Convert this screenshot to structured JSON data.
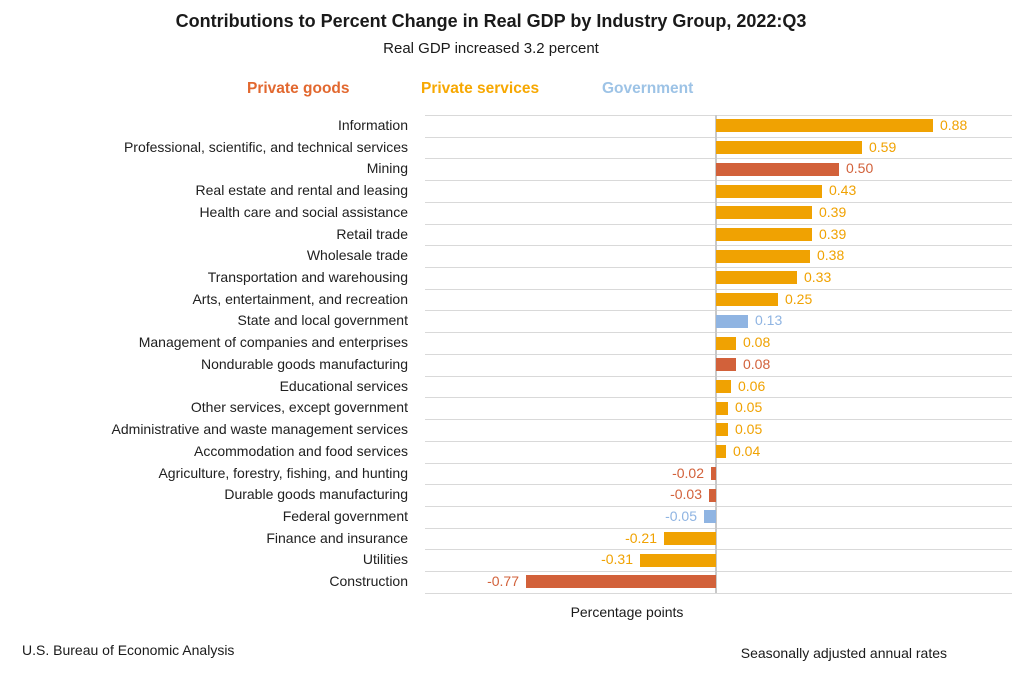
{
  "chart_data": {
    "type": "bar",
    "orientation": "horizontal",
    "title": "Contributions to Percent Change in Real GDP by Industry Group, 2022:Q3",
    "subtitle": "Real GDP increased 3.2 percent",
    "xlabel": "Percentage points",
    "xlim": [
      -1.18,
      1.2
    ],
    "grid": "horizontal category separators, vertical zero axis only",
    "legend_position": "top",
    "value_label_decimals": 2,
    "series": [
      {
        "key": "goods",
        "name": "Private goods",
        "color": "#D2613A",
        "legend_text_color": "#E2682F"
      },
      {
        "key": "services",
        "name": "Private services",
        "color": "#F0A202",
        "legend_text_color": "#F7A802"
      },
      {
        "key": "government",
        "name": "Government",
        "color": "#8FB4E2",
        "legend_text_color": "#9DC3E6"
      }
    ],
    "categories": [
      "Information",
      "Professional, scientific, and technical services",
      "Mining",
      "Real estate and rental and leasing",
      "Health care and social assistance",
      "Retail trade",
      "Wholesale trade",
      "Transportation and warehousing",
      "Arts, entertainment, and recreation",
      "State and local government",
      "Management of companies and enterprises",
      "Nondurable goods manufacturing",
      "Educational services",
      "Other services, except government",
      "Administrative and waste management services",
      "Accommodation and food services",
      "Agriculture, forestry, fishing, and hunting",
      "Durable goods manufacturing",
      "Federal government",
      "Finance and insurance",
      "Utilities",
      "Construction"
    ],
    "values": [
      0.88,
      0.59,
      0.5,
      0.43,
      0.39,
      0.39,
      0.38,
      0.33,
      0.25,
      0.13,
      0.08,
      0.08,
      0.06,
      0.05,
      0.05,
      0.04,
      -0.02,
      -0.03,
      -0.05,
      -0.21,
      -0.31,
      -0.77
    ],
    "series_of_category": [
      "services",
      "services",
      "goods",
      "services",
      "services",
      "services",
      "services",
      "services",
      "services",
      "government",
      "services",
      "goods",
      "services",
      "services",
      "services",
      "services",
      "goods",
      "goods",
      "government",
      "services",
      "services",
      "goods"
    ]
  },
  "footer": {
    "left": "U.S. Bureau of Economic Analysis",
    "right": "Seasonally adjusted annual rates"
  }
}
